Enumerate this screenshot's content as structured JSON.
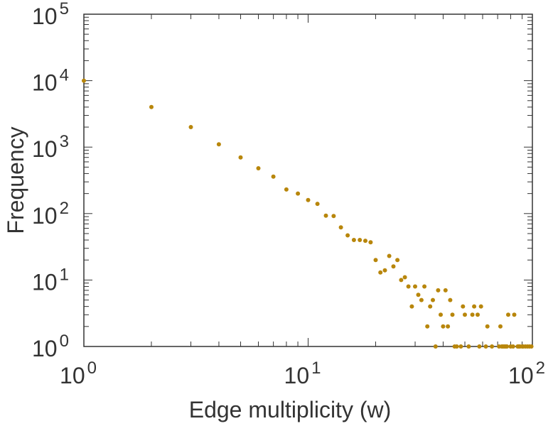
{
  "chart_data": {
    "type": "scatter",
    "xscale": "log",
    "yscale": "log",
    "xlabel": "Edge multiplicity (w)",
    "ylabel": "Frequency",
    "xlim": [
      1,
      100
    ],
    "ylim": [
      1,
      100000
    ],
    "x_ticks": [
      {
        "base": "10",
        "exp": "0"
      },
      {
        "base": "10",
        "exp": "1"
      },
      {
        "base": "10",
        "exp": "2"
      }
    ],
    "y_ticks": [
      {
        "base": "10",
        "exp": "0"
      },
      {
        "base": "10",
        "exp": "1"
      },
      {
        "base": "10",
        "exp": "2"
      },
      {
        "base": "10",
        "exp": "3"
      },
      {
        "base": "10",
        "exp": "4"
      },
      {
        "base": "10",
        "exp": "5"
      }
    ],
    "marker_color": "#b8860b",
    "points": [
      [
        1,
        10000
      ],
      [
        2,
        4000
      ],
      [
        3,
        2000
      ],
      [
        4,
        1100
      ],
      [
        5,
        700
      ],
      [
        6,
        480
      ],
      [
        7,
        360
      ],
      [
        8,
        230
      ],
      [
        9,
        200
      ],
      [
        10,
        160
      ],
      [
        11,
        140
      ],
      [
        12,
        93
      ],
      [
        13,
        92
      ],
      [
        14,
        62
      ],
      [
        15,
        47
      ],
      [
        16,
        40
      ],
      [
        17,
        40
      ],
      [
        18,
        39
      ],
      [
        19,
        37
      ],
      [
        20,
        20
      ],
      [
        21,
        13
      ],
      [
        22,
        14
      ],
      [
        23,
        23
      ],
      [
        24,
        16
      ],
      [
        25,
        20
      ],
      [
        26,
        10
      ],
      [
        27,
        11
      ],
      [
        28,
        8
      ],
      [
        29,
        4
      ],
      [
        30,
        8
      ],
      [
        31,
        6
      ],
      [
        32,
        5
      ],
      [
        33,
        8
      ],
      [
        34,
        2
      ],
      [
        35,
        4
      ],
      [
        36,
        5
      ],
      [
        37,
        1
      ],
      [
        38,
        7
      ],
      [
        39,
        3
      ],
      [
        40,
        2
      ],
      [
        41,
        7
      ],
      [
        42,
        2
      ],
      [
        43,
        5
      ],
      [
        44,
        3
      ],
      [
        45,
        1
      ],
      [
        46,
        1
      ],
      [
        48,
        1
      ],
      [
        49,
        4
      ],
      [
        50,
        3
      ],
      [
        52,
        1
      ],
      [
        54,
        3
      ],
      [
        55,
        4
      ],
      [
        57,
        3
      ],
      [
        58,
        1
      ],
      [
        59,
        4
      ],
      [
        62,
        1
      ],
      [
        63,
        2
      ],
      [
        66,
        1
      ],
      [
        71,
        1
      ],
      [
        72,
        2
      ],
      [
        73,
        1
      ],
      [
        74,
        1
      ],
      [
        75,
        1
      ],
      [
        76,
        1
      ],
      [
        77,
        1
      ],
      [
        78,
        3
      ],
      [
        80,
        1
      ],
      [
        82,
        1
      ],
      [
        83,
        3
      ],
      [
        86,
        1
      ],
      [
        87,
        1
      ],
      [
        88,
        1
      ],
      [
        90,
        1
      ],
      [
        91,
        1
      ],
      [
        93,
        1
      ],
      [
        95,
        1
      ],
      [
        97,
        1
      ],
      [
        99,
        1
      ]
    ]
  }
}
